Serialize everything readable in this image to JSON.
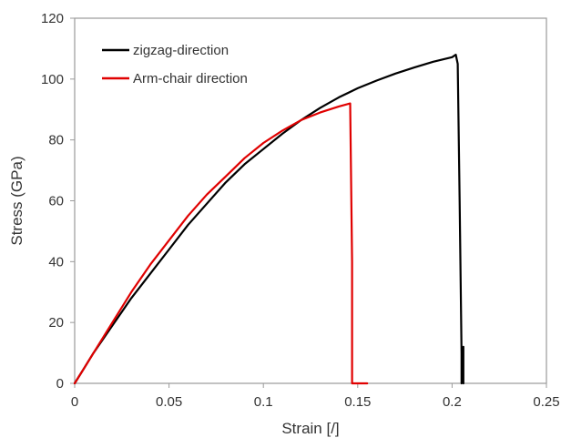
{
  "chart_data": {
    "type": "line",
    "title": "",
    "xlabel": "Strain [/]",
    "ylabel": "Stress (GPa)",
    "xlim": [
      0,
      0.25
    ],
    "ylim": [
      0,
      120
    ],
    "xticks": [
      "0",
      "0.05",
      "0.1",
      "0.15",
      "0.2",
      "0.25"
    ],
    "yticks": [
      "0",
      "20",
      "40",
      "60",
      "80",
      "100",
      "120"
    ],
    "grid": false,
    "legend_position": "top-left",
    "series": [
      {
        "name": "zigzag-direction",
        "color": "#000000",
        "x": [
          0,
          0.005,
          0.01,
          0.02,
          0.03,
          0.04,
          0.05,
          0.06,
          0.07,
          0.08,
          0.09,
          0.1,
          0.11,
          0.12,
          0.13,
          0.14,
          0.15,
          0.16,
          0.17,
          0.18,
          0.19,
          0.2,
          0.202,
          0.203,
          0.204,
          0.205,
          0.205,
          0.206,
          0.206
        ],
        "y": [
          0,
          5,
          10,
          19,
          28,
          36,
          44,
          52,
          59,
          66,
          72,
          77,
          82,
          86.5,
          90.5,
          94,
          97,
          99.5,
          101.8,
          103.8,
          105.7,
          107.2,
          108,
          105,
          60,
          10,
          0,
          12,
          0
        ]
      },
      {
        "name": "Arm-chair direction",
        "color": "#e00000",
        "x": [
          0,
          0.005,
          0.01,
          0.02,
          0.03,
          0.04,
          0.05,
          0.06,
          0.07,
          0.08,
          0.09,
          0.1,
          0.11,
          0.12,
          0.13,
          0.14,
          0.146,
          0.147,
          0.147,
          0.149,
          0.155
        ],
        "y": [
          0,
          5,
          10,
          20,
          30,
          39,
          47,
          55,
          62,
          68,
          74,
          79,
          83,
          86.5,
          89,
          91,
          92,
          40,
          0,
          0,
          0
        ]
      }
    ]
  }
}
